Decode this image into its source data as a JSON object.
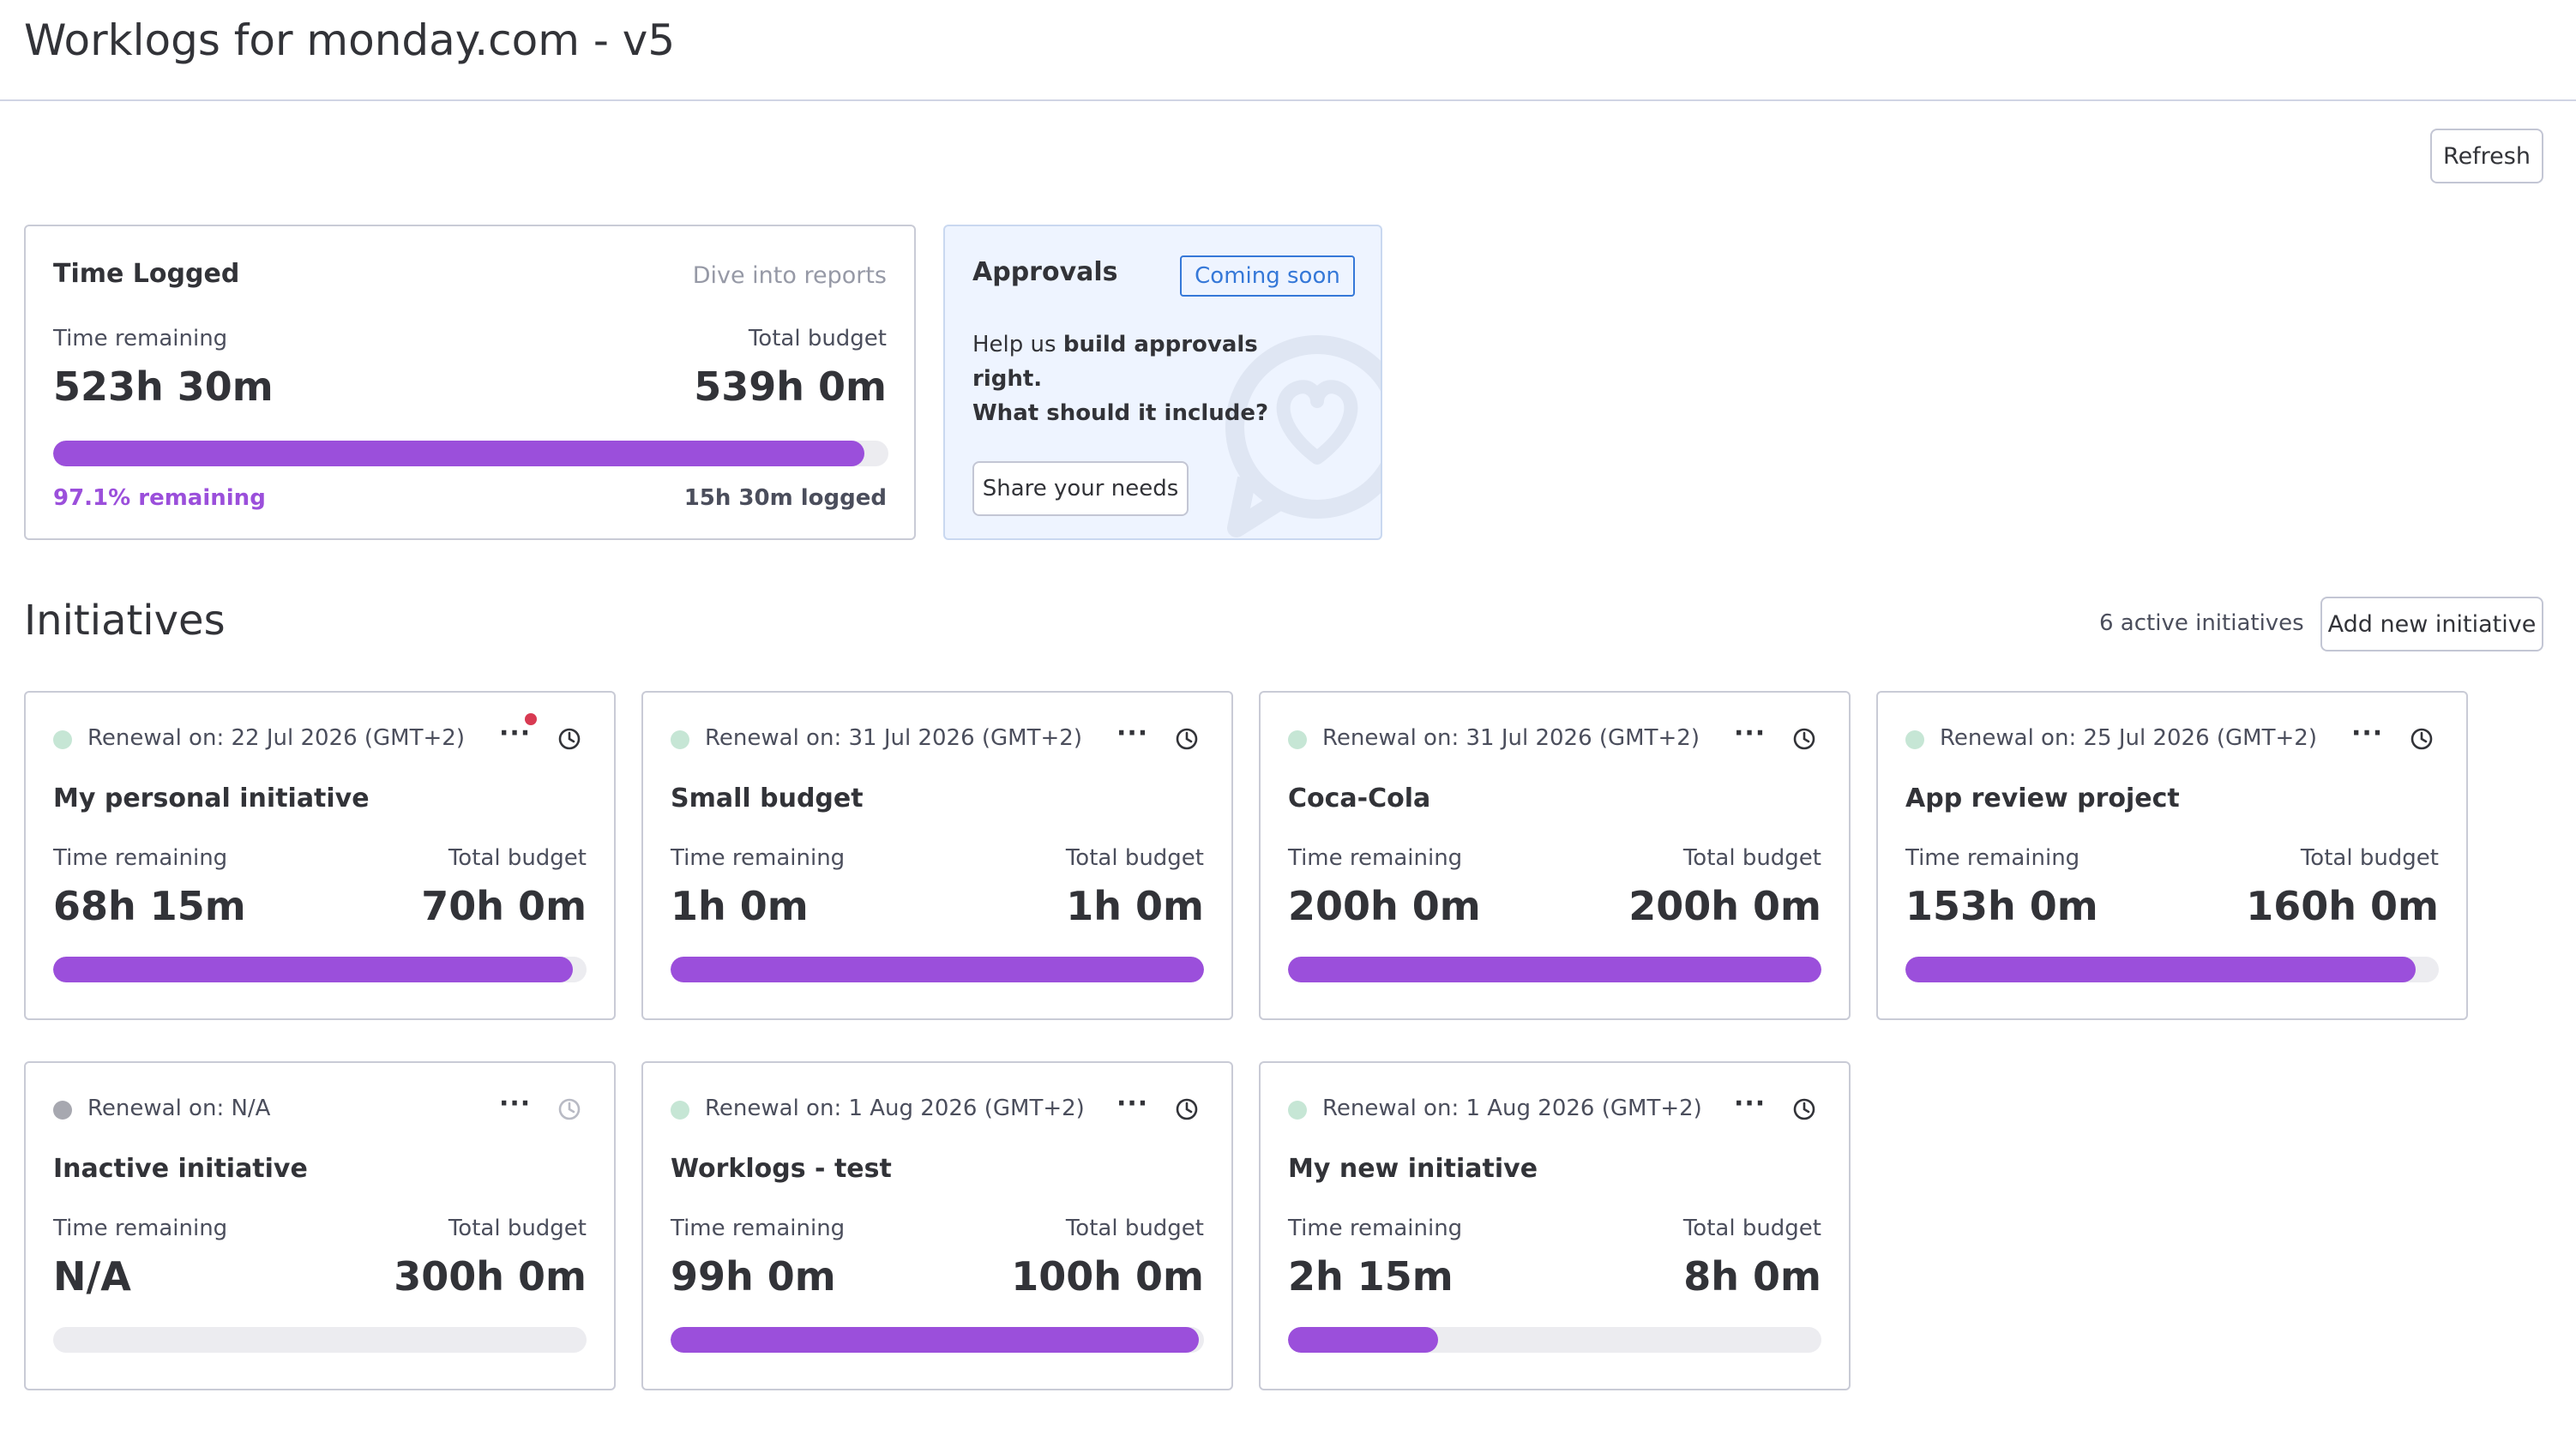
{
  "header": {
    "title": "Worklogs for monday.com - v5"
  },
  "toolbar": {
    "refresh_label": "Refresh"
  },
  "time_logged": {
    "title": "Time Logged",
    "link": "Dive into reports",
    "remaining_label": "Time remaining",
    "budget_label": "Total budget",
    "remaining_value": "523h 30m",
    "budget_value": "539h 0m",
    "progress_fraction": 0.971,
    "percent_text": "97.1% remaining",
    "logged_text": "15h 30m logged"
  },
  "approvals": {
    "title": "Approvals",
    "badge": "Coming soon",
    "text_prefix": "Help us ",
    "text_bold1": "build approvals right.",
    "text_bold2": "What should it include?",
    "share_label": "Share your needs"
  },
  "initiatives": {
    "heading": "Initiatives",
    "active_count": "6 active initiatives",
    "add_label": "Add new initiative",
    "remaining_label": "Time remaining",
    "budget_label": "Total budget",
    "menu_glyph": "···",
    "cards": [
      {
        "renewal": "Renewal on: 22 Jul 2026 (GMT+2)",
        "name": "My personal initiative",
        "remaining": "68h 15m",
        "budget": "70h 0m",
        "progress": 0.975,
        "active": true,
        "notification": true
      },
      {
        "renewal": "Renewal on: 31 Jul 2026 (GMT+2)",
        "name": "Small budget",
        "remaining": "1h 0m",
        "budget": "1h 0m",
        "progress": 1.0,
        "active": true,
        "notification": false
      },
      {
        "renewal": "Renewal on: 31 Jul 2026 (GMT+2)",
        "name": "Coca-Cola",
        "remaining": "200h 0m",
        "budget": "200h 0m",
        "progress": 1.0,
        "active": true,
        "notification": false
      },
      {
        "renewal": "Renewal on: 25 Jul 2026 (GMT+2)",
        "name": "App review project",
        "remaining": "153h 0m",
        "budget": "160h 0m",
        "progress": 0.956,
        "active": true,
        "notification": false
      },
      {
        "renewal": "Renewal on: N/A",
        "name": "Inactive initiative",
        "remaining": "N/A",
        "budget": "300h 0m",
        "progress": 0,
        "active": false,
        "notification": false
      },
      {
        "renewal": "Renewal on: 1 Aug 2026 (GMT+2)",
        "name": "Worklogs - test",
        "remaining": "99h 0m",
        "budget": "100h 0m",
        "progress": 0.99,
        "active": true,
        "notification": false
      },
      {
        "renewal": "Renewal on: 1 Aug 2026 (GMT+2)",
        "name": "My new initiative",
        "remaining": "2h 15m",
        "budget": "8h 0m",
        "progress": 0.281,
        "active": true,
        "notification": false
      }
    ]
  },
  "colors": {
    "accent": "#9b4fdb",
    "link_blue": "#3578d8",
    "active_dot": "#c6e6d5",
    "inactive_dot": "#a7a8b0",
    "track": "#ececf0"
  },
  "icons": {
    "clock": "clock-icon",
    "menu": "more-options-icon"
  }
}
